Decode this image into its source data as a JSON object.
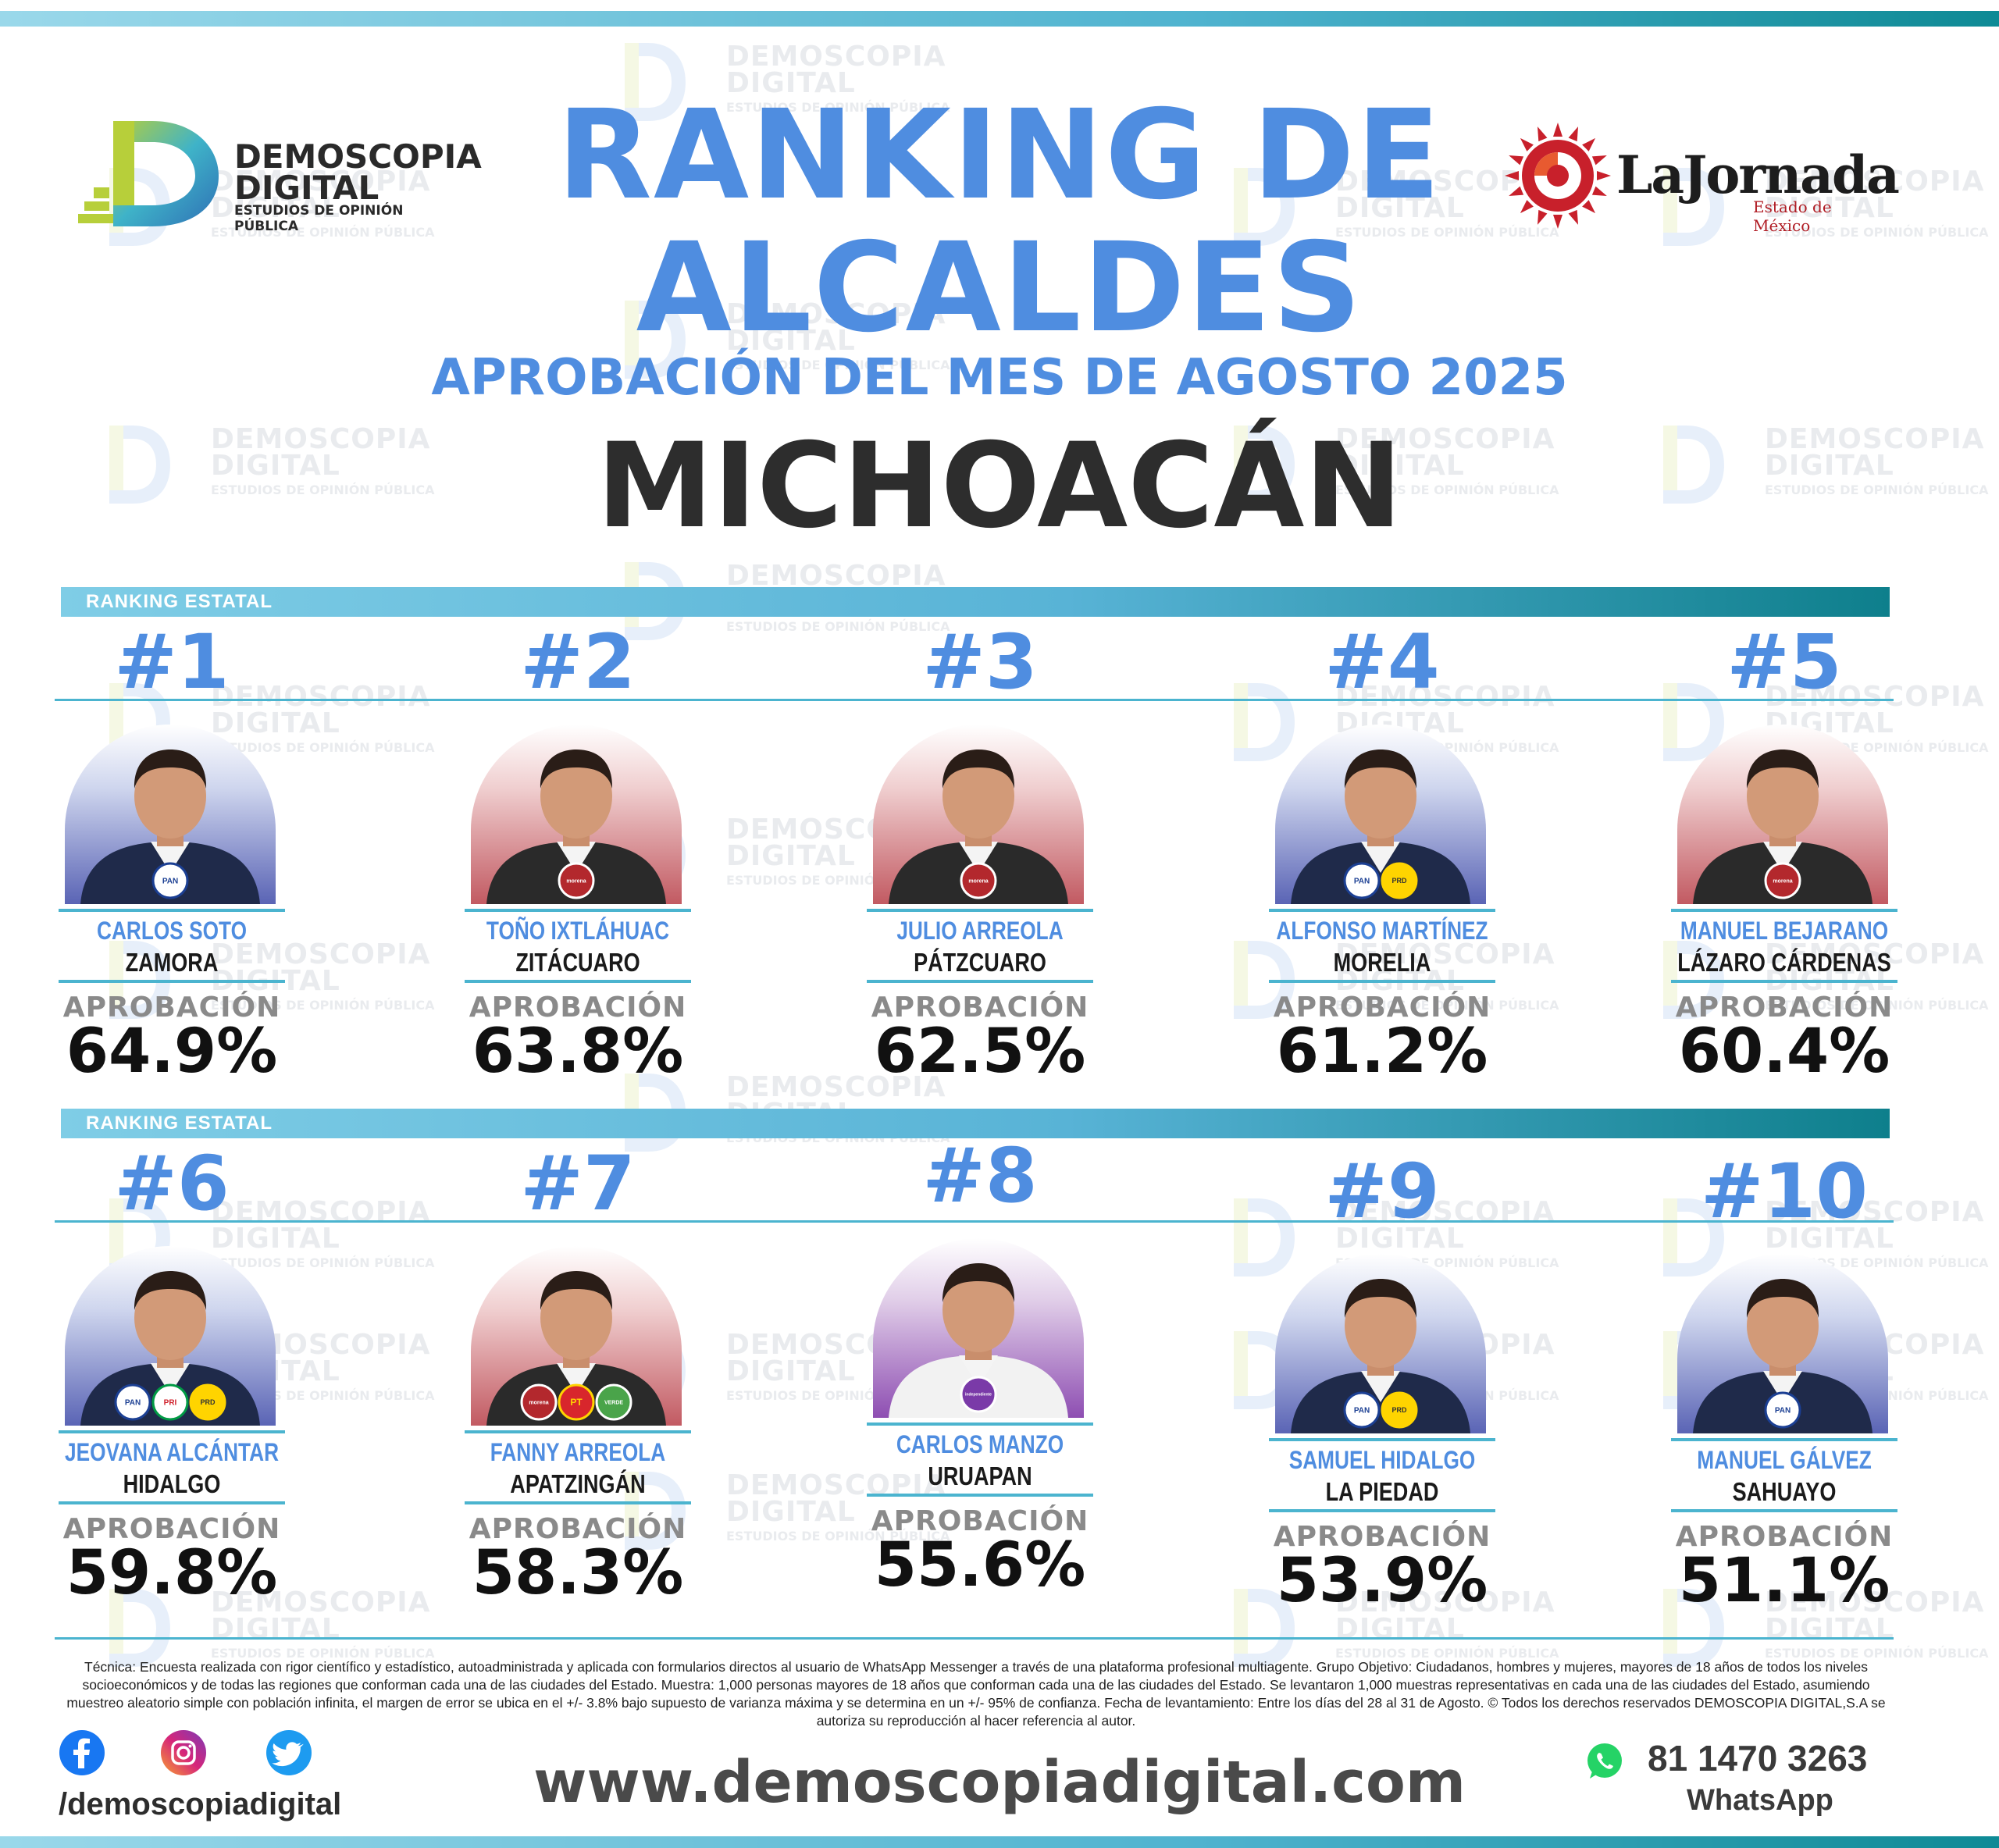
{
  "header": {
    "title_line1": "RANKING DE",
    "title_line2": "ALCALDES",
    "subtitle": "APROBACIÓN DEL MES DE AGOSTO 2025",
    "state": "MICHOACÁN"
  },
  "logo_left": {
    "line1": "DEMOSCOPIA",
    "line2": "DIGITAL",
    "line3": "ESTUDIOS DE OPINIÓN PÚBLICA"
  },
  "logo_right": {
    "name": "LaJornada",
    "sub": "Estado de México"
  },
  "watermark": {
    "line1": "DEMOSCOPIA",
    "line2": "DIGITAL",
    "line3": "ESTUDIOS DE OPINIÓN PÚBLICA"
  },
  "section_label": "RANKING ESTATAL",
  "approval_label": "APROBACIÓN",
  "colors": {
    "accent_blue": "#4f8de0",
    "teal": "#4bb4cf",
    "dark_teal": "#0e7f8c"
  },
  "mayors": [
    {
      "rank": "#1",
      "name": "CARLOS SOTO",
      "city": "ZAMORA",
      "approval": "64.9%",
      "bg": "blue",
      "parties": [
        "PAN"
      ]
    },
    {
      "rank": "#2",
      "name": "TOÑO IXTLÁHUAC",
      "city": "ZITÁCUARO",
      "approval": "63.8%",
      "bg": "red",
      "parties": [
        "morena"
      ]
    },
    {
      "rank": "#3",
      "name": "JULIO ARREOLA",
      "city": "PÁTZCUARO",
      "approval": "62.5%",
      "bg": "red",
      "parties": [
        "morena"
      ]
    },
    {
      "rank": "#4",
      "name": "ALFONSO MARTÍNEZ",
      "city": "MORELIA",
      "approval": "61.2%",
      "bg": "blue",
      "parties": [
        "PAN",
        "PRD"
      ]
    },
    {
      "rank": "#5",
      "name": "MANUEL BEJARANO",
      "city": "LÁZARO CÁRDENAS",
      "approval": "60.4%",
      "bg": "red",
      "parties": [
        "morena"
      ]
    },
    {
      "rank": "#6",
      "name": "JEOVANA ALCÁNTAR",
      "city": "HIDALGO",
      "approval": "59.8%",
      "bg": "blue",
      "parties": [
        "PAN",
        "PRI",
        "PRD"
      ]
    },
    {
      "rank": "#7",
      "name": "FANNY ARREOLA",
      "city": "APATZINGÁN",
      "approval": "58.3%",
      "bg": "red",
      "parties": [
        "morena",
        "PT",
        "VERDE"
      ]
    },
    {
      "rank": "#8",
      "name": "CARLOS MANZO",
      "city": "URUAPAN",
      "approval": "55.6%",
      "bg": "purple",
      "parties": [
        "independiente"
      ]
    },
    {
      "rank": "#9",
      "name": "SAMUEL HIDALGO",
      "city": "LA PIEDAD",
      "approval": "53.9%",
      "bg": "blue",
      "parties": [
        "PAN",
        "PRD"
      ]
    },
    {
      "rank": "#10",
      "name": "MANUEL GÁLVEZ",
      "city": "SAHUAYO",
      "approval": "51.1%",
      "bg": "blue",
      "parties": [
        "PAN"
      ]
    }
  ],
  "footnote": "Técnica: Encuesta realizada con rigor científico y estadístico, autoadministrada y aplicada con formularios directos al usuario de WhatsApp Messenger a través de una plataforma profesional multiagente. Grupo Objetivo: Ciudadanos, hombres y mujeres, mayores de 18 años de todos los niveles socioeconómicos y de todas las regiones que conforman cada una de las ciudades del Estado. Muestra: 1,000 personas mayores de 18 años que conforman cada una de las ciudades del Estado. Se levantaron 1,000 muestras representativas en cada una de las ciudades del Estado, asumiendo muestreo aleatorio simple con población infinita, el margen de error se ubica en el +/- 3.8% bajo supuesto de varianza máxima y se determina en un +/- 95% de confianza. Fecha de levantamiento: Entre los días del 28 al 31 de Agosto. © Todos los derechos reservados DEMOSCOPIA DIGITAL,S.A se autoriza su reproducción al hacer referencia al autor.",
  "social": {
    "handle": "/demoscopiadigital",
    "icons": [
      "facebook-icon",
      "instagram-icon",
      "twitter-icon"
    ]
  },
  "website": "www.demoscopiadigital.com",
  "whatsapp": {
    "phone": "81 1470 3263",
    "label": "WhatsApp"
  }
}
